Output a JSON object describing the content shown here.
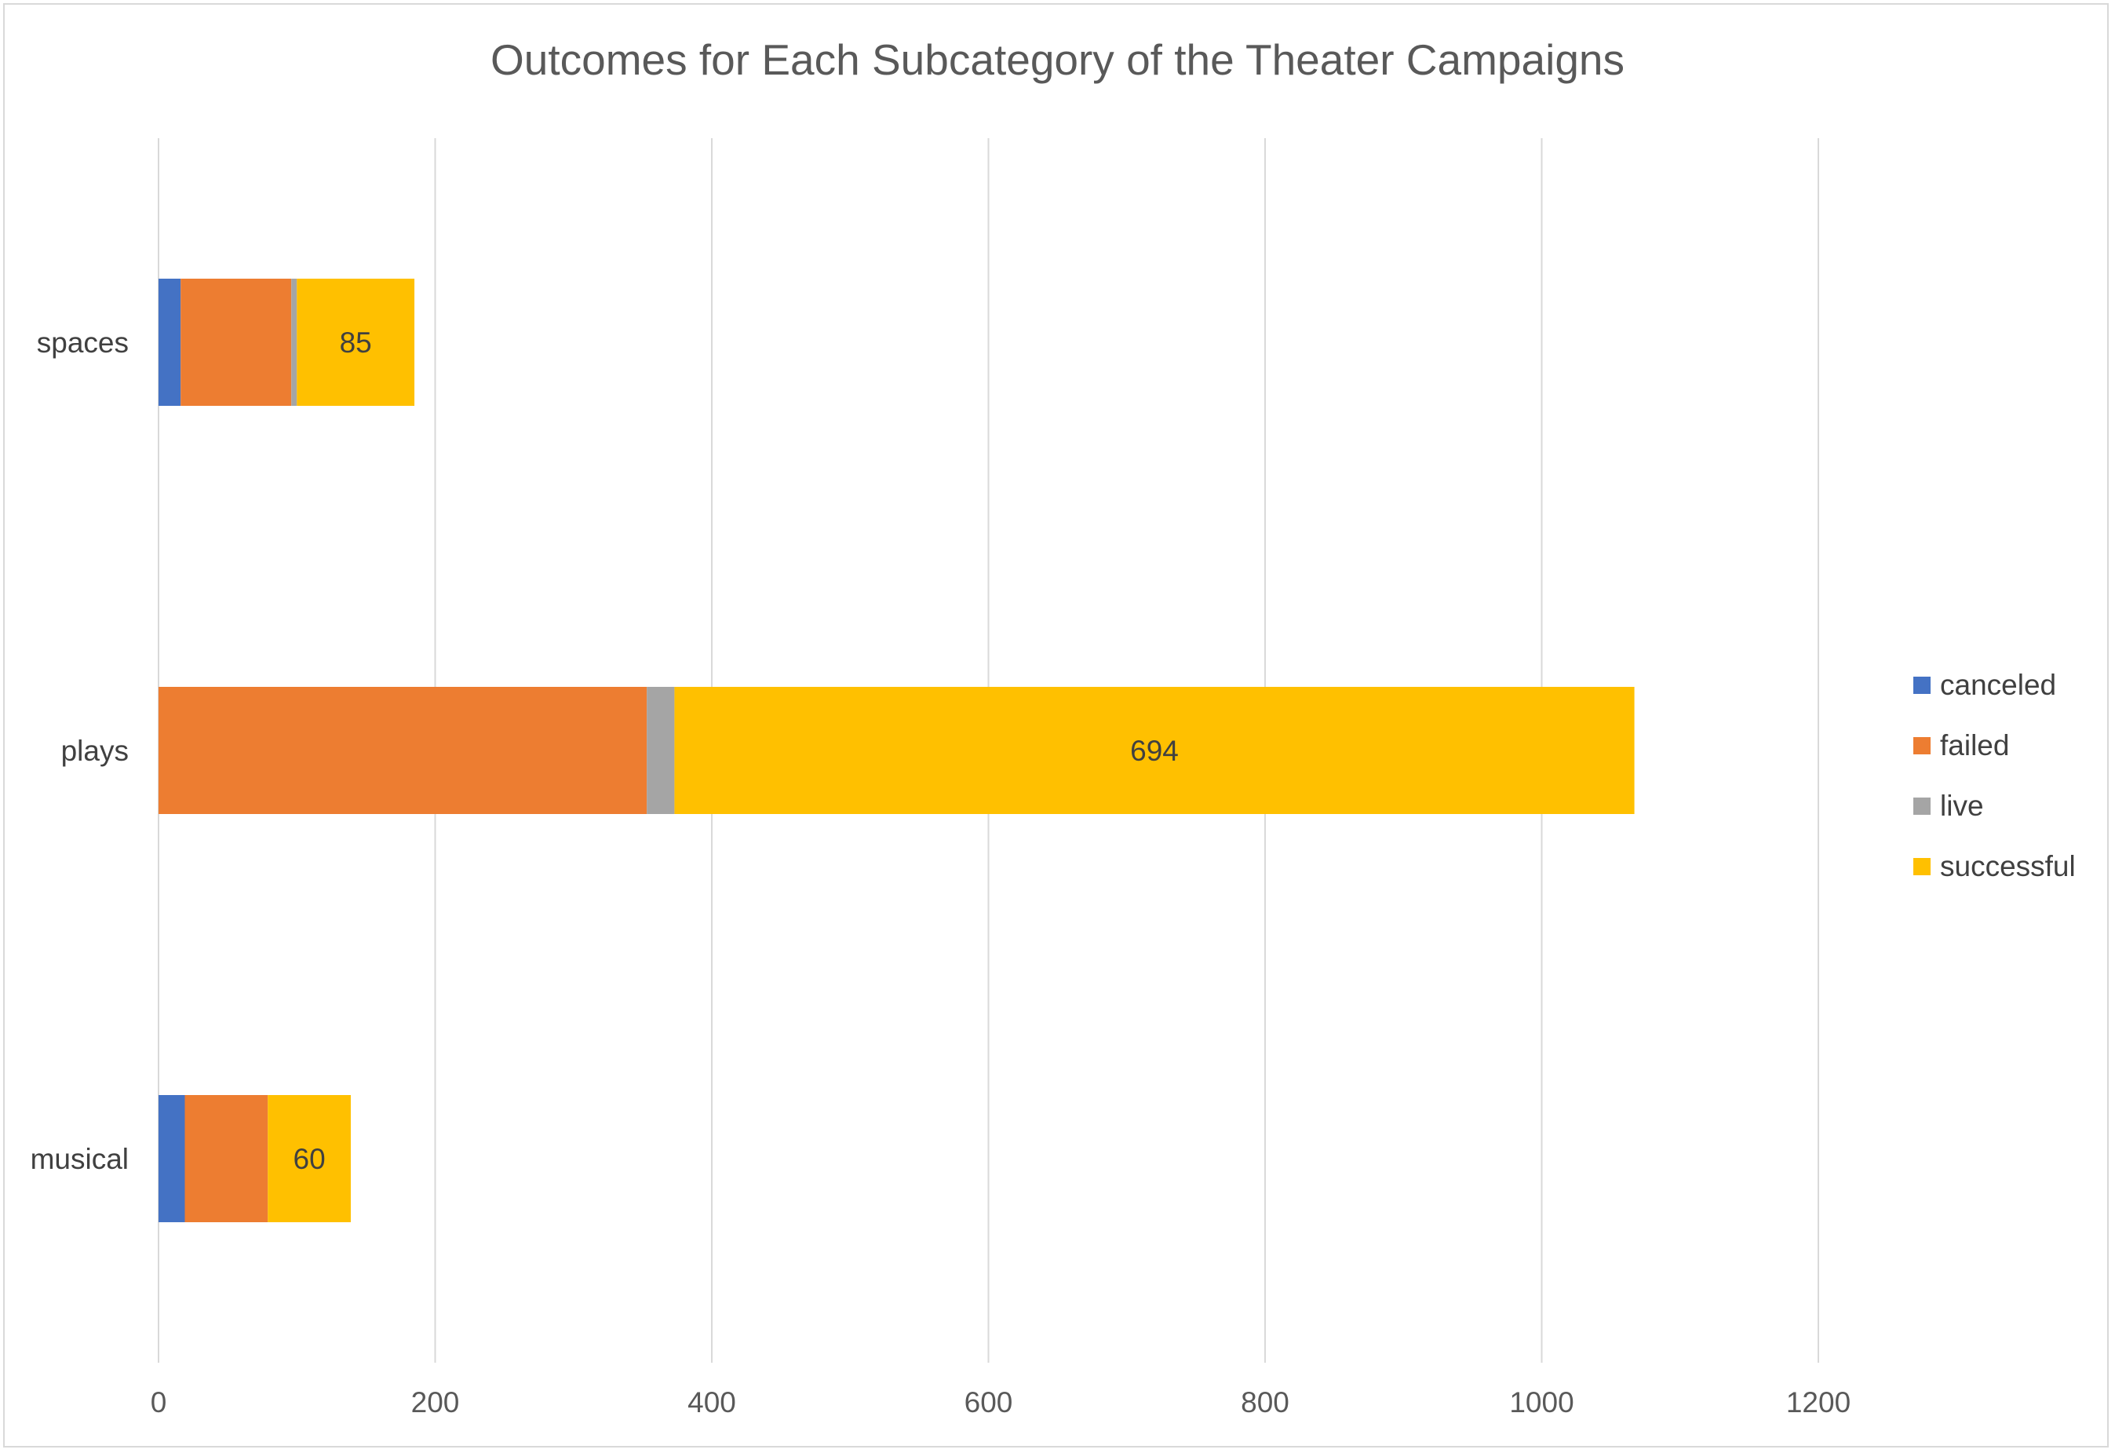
{
  "chart_data": {
    "type": "bar",
    "orientation": "horizontal",
    "stacked": true,
    "title": "Outcomes for Each Subcategory of the Theater Campaigns",
    "categories": [
      "spaces",
      "plays",
      "musical"
    ],
    "series": [
      {
        "name": "canceled",
        "color": "#4472c4",
        "values": [
          16,
          0,
          19
        ]
      },
      {
        "name": "failed",
        "color": "#ed7d31",
        "values": [
          80,
          353,
          60
        ]
      },
      {
        "name": "live",
        "color": "#a5a5a5",
        "values": [
          4,
          20,
          0
        ]
      },
      {
        "name": "successful",
        "color": "#ffc000",
        "values": [
          85,
          694,
          60
        ]
      }
    ],
    "data_labels": {
      "series": "successful"
    },
    "xlim": [
      0,
      1200
    ],
    "xticks": [
      "0",
      "200",
      "400",
      "600",
      "800",
      "1000",
      "1200"
    ],
    "grid": true,
    "legend_position": "right"
  }
}
